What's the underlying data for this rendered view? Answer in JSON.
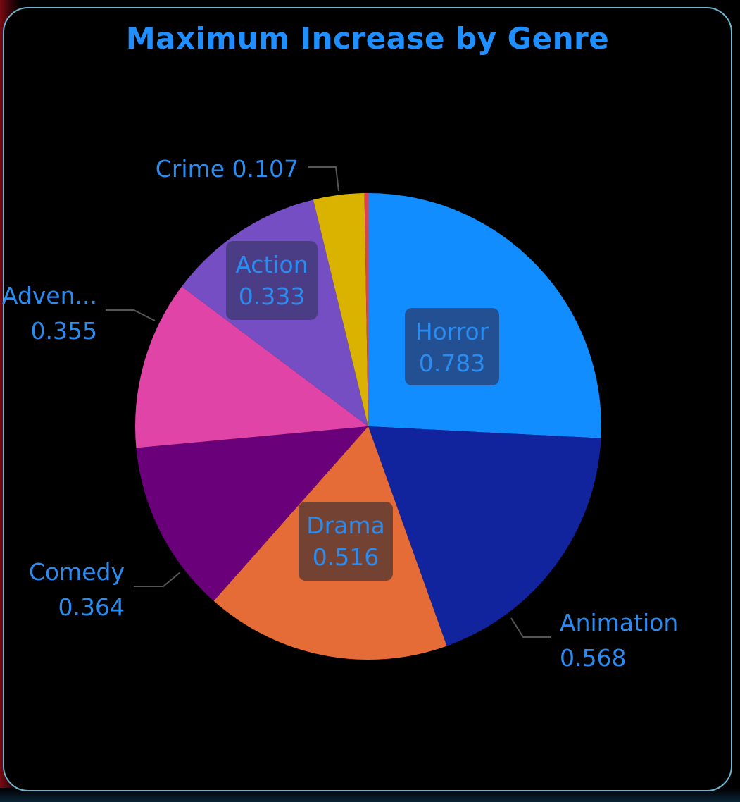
{
  "chart_data": {
    "type": "pie",
    "title": "Maximum Increase by Genre",
    "slices": [
      {
        "label": "Horror",
        "display_label": "Horror",
        "value": 0.783,
        "display_value": "0.783",
        "color": "#118DFF"
      },
      {
        "label": "Animation",
        "display_label": "Animation",
        "value": 0.568,
        "display_value": "0.568",
        "color": "#12239E"
      },
      {
        "label": "Drama",
        "display_label": "Drama",
        "value": 0.516,
        "display_value": "0.516",
        "color": "#E66C37"
      },
      {
        "label": "Comedy",
        "display_label": "Comedy",
        "value": 0.364,
        "display_value": "0.364",
        "color": "#6B007B"
      },
      {
        "label": "Adventure",
        "display_label": "Adven...",
        "value": 0.355,
        "display_value": "0.355",
        "color": "#E044A7"
      },
      {
        "label": "Action",
        "display_label": "Action",
        "value": 0.333,
        "display_value": "0.333",
        "color": "#744EC2"
      },
      {
        "label": "Crime",
        "display_label": "Crime",
        "value": 0.107,
        "display_value": "0.107",
        "color": "#D9B300"
      },
      {
        "label": "",
        "display_label": "",
        "value": 0.008,
        "display_value": "",
        "color": "#D64550"
      }
    ]
  },
  "colors": {
    "title": "#1F8FFF",
    "label_text": "#2A8CF0",
    "leader_line": "#555555",
    "card_border": "#6FB5CF"
  }
}
